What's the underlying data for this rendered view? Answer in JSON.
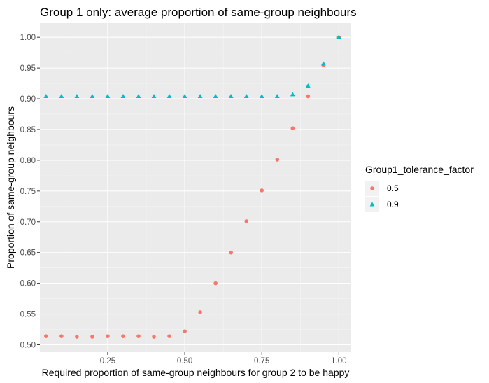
{
  "chart_data": {
    "type": "scatter",
    "title": "Group 1 only: average proportion of same-group neighbours",
    "xlabel": "Required proportion of same-group neighbours for group 2 to be happy",
    "ylabel": "Proportion of same-group neighbours",
    "xlim": [
      0.03,
      1.04
    ],
    "ylim": [
      0.488,
      1.023
    ],
    "x_ticks": [
      0.25,
      0.5,
      0.75,
      1.0
    ],
    "x_tick_labels": [
      "0.25",
      "0.50",
      "0.75",
      "1.00"
    ],
    "y_ticks": [
      0.5,
      0.55,
      0.6,
      0.65,
      0.7,
      0.75,
      0.8,
      0.85,
      0.9,
      0.95,
      1.0
    ],
    "y_tick_labels": [
      "0.50",
      "0.55",
      "0.60",
      "0.65",
      "0.70",
      "0.75",
      "0.80",
      "0.85",
      "0.90",
      "0.95",
      "1.00"
    ],
    "grid": true,
    "legend_position": "right",
    "legend_title": "Group1_tolerance_factor",
    "x": [
      0.05,
      0.1,
      0.15,
      0.2,
      0.25,
      0.3,
      0.35,
      0.4,
      0.45,
      0.5,
      0.55,
      0.6,
      0.65,
      0.7,
      0.75,
      0.8,
      0.85,
      0.9,
      0.95,
      1.0
    ],
    "series": [
      {
        "name": "0.5",
        "color": "#f8766d",
        "marker": "circle",
        "values": [
          0.514,
          0.514,
          0.513,
          0.513,
          0.514,
          0.514,
          0.514,
          0.513,
          0.514,
          0.522,
          0.553,
          0.6,
          0.65,
          0.701,
          0.751,
          0.801,
          0.852,
          0.904,
          0.955,
          1.0
        ]
      },
      {
        "name": "0.9",
        "color": "#00bfc4",
        "marker": "triangle",
        "values": [
          0.904,
          0.904,
          0.904,
          0.904,
          0.904,
          0.904,
          0.904,
          0.904,
          0.904,
          0.904,
          0.904,
          0.904,
          0.904,
          0.904,
          0.904,
          0.904,
          0.907,
          0.921,
          0.957,
          1.0
        ]
      }
    ]
  }
}
